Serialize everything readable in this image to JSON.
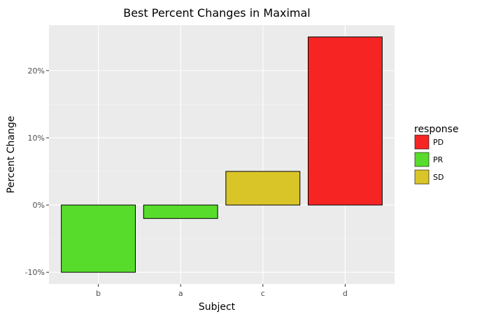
{
  "chart_data": {
    "type": "bar",
    "title": "Best Percent Changes in Maximal",
    "xlabel": "Subject",
    "ylabel": "Percent Change",
    "categories": [
      "b",
      "a",
      "c",
      "d"
    ],
    "values": [
      -10,
      -2,
      5,
      25
    ],
    "response": [
      "PR",
      "PR",
      "SD",
      "PD"
    ],
    "ylim": [
      -11.75,
      26.75
    ],
    "yticks": [
      -10,
      0,
      10,
      20
    ],
    "ytick_labels": [
      "-10%",
      "0%",
      "10%",
      "20%"
    ],
    "grid": true,
    "legend": {
      "title": "response",
      "position": "right",
      "entries": [
        {
          "label": "PD",
          "color": "#f72424"
        },
        {
          "label": "PR",
          "color": "#58dc2c"
        },
        {
          "label": "SD",
          "color": "#dac529"
        }
      ]
    }
  }
}
